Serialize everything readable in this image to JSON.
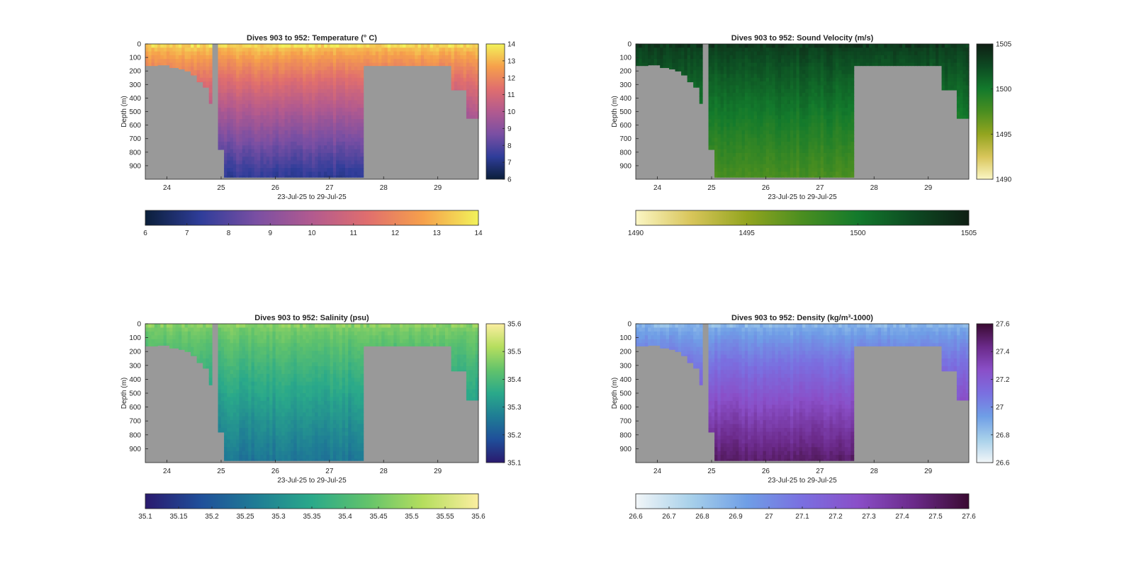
{
  "chart_data": [
    {
      "type": "heatmap",
      "title": "Dives 903 to 952: Temperature (° C)",
      "xlabel": "23-Jul-25 to 29-Jul-25",
      "ylabel": "Depth (m)",
      "x_range": [
        23.6,
        29.75
      ],
      "y_range": [
        0,
        1000
      ],
      "x_ticks": [
        "24",
        "25",
        "26",
        "27",
        "28",
        "29"
      ],
      "y_ticks": [
        "0",
        "100",
        "200",
        "300",
        "400",
        "500",
        "600",
        "700",
        "800",
        "900"
      ],
      "clim": [
        6,
        14
      ],
      "colorbar_right_ticks": [
        "6",
        "7",
        "8",
        "9",
        "10",
        "11",
        "12",
        "13",
        "14"
      ],
      "colorbar_bottom_ticks": [
        "6",
        "7",
        "8",
        "9",
        "10",
        "11",
        "12",
        "13",
        "14"
      ],
      "surface_value": 13.6,
      "bottom_value": 7.2,
      "colormap": [
        "#0b1f3a",
        "#2f3d9a",
        "#7a4fa3",
        "#b25a8f",
        "#e06e6e",
        "#f6a04b",
        "#f2f25a"
      ]
    },
    {
      "type": "heatmap",
      "title": "Dives 903 to 952: Sound Velocity (m/s)",
      "xlabel": "23-Jul-25 to 29-Jul-25",
      "ylabel": "Depth (m)",
      "x_range": [
        23.6,
        29.75
      ],
      "y_range": [
        0,
        1000
      ],
      "x_ticks": [
        "24",
        "25",
        "26",
        "27",
        "28",
        "29"
      ],
      "y_ticks": [
        "0",
        "100",
        "200",
        "300",
        "400",
        "500",
        "600",
        "700",
        "800",
        "900"
      ],
      "clim": [
        1490,
        1505
      ],
      "colorbar_right_ticks": [
        "1490",
        "1495",
        "1500",
        "1505"
      ],
      "colorbar_bottom_ticks": [
        "1490",
        "1495",
        "1500",
        "1505"
      ],
      "surface_value": 1503.5,
      "bottom_value": 1497.5,
      "colormap": [
        "#fbf6c4",
        "#d8c55a",
        "#93a51f",
        "#4a8e20",
        "#137a2c",
        "#0d4a22",
        "#0f1f14"
      ]
    },
    {
      "type": "heatmap",
      "title": "Dives 903 to 952: Salinity (psu)",
      "xlabel": "23-Jul-25 to 29-Jul-25",
      "ylabel": "Depth (m)",
      "x_range": [
        23.6,
        29.75
      ],
      "y_range": [
        0,
        1000
      ],
      "x_ticks": [
        "24",
        "25",
        "26",
        "27",
        "28",
        "29"
      ],
      "y_ticks": [
        "0",
        "100",
        "200",
        "300",
        "400",
        "500",
        "600",
        "700",
        "800",
        "900"
      ],
      "clim": [
        35.1,
        35.6
      ],
      "colorbar_right_ticks": [
        "35.1",
        "35.2",
        "35.3",
        "35.4",
        "35.5",
        "35.6"
      ],
      "colorbar_bottom_ticks": [
        "35.1",
        "35.15",
        "35.2",
        "35.25",
        "35.3",
        "35.35",
        "35.4",
        "35.45",
        "35.5",
        "35.55",
        "35.6"
      ],
      "surface_value": 35.47,
      "bottom_value": 35.25,
      "colormap": [
        "#2a1a6e",
        "#1f4f9a",
        "#1f7d95",
        "#2aa98a",
        "#62c36b",
        "#b5de5e",
        "#fbeea0"
      ]
    },
    {
      "type": "heatmap",
      "title": "Dives 903 to 952: Density (kg/m³-1000)",
      "xlabel": "23-Jul-25 to 29-Jul-25",
      "ylabel": "Depth (m)",
      "x_range": [
        23.6,
        29.75
      ],
      "y_range": [
        0,
        1000
      ],
      "x_ticks": [
        "24",
        "25",
        "26",
        "27",
        "28",
        "29"
      ],
      "y_ticks": [
        "0",
        "100",
        "200",
        "300",
        "400",
        "500",
        "600",
        "700",
        "800",
        "900"
      ],
      "clim": [
        26.6,
        27.6
      ],
      "colorbar_right_ticks": [
        "26.6",
        "26.8",
        "27",
        "27.2",
        "27.4",
        "27.6"
      ],
      "colorbar_bottom_ticks": [
        "26.6",
        "26.7",
        "26.8",
        "26.9",
        "27",
        "27.1",
        "27.2",
        "27.3",
        "27.4",
        "27.5",
        "27.6"
      ],
      "surface_value": 26.85,
      "bottom_value": 27.5,
      "colormap": [
        "#f2f6f8",
        "#a7d0ea",
        "#6f9ee6",
        "#7a6fe0",
        "#8a4fc8",
        "#6b2a8a",
        "#3a0b32"
      ]
    }
  ],
  "dive_profiles": {
    "unit_x": "day of July 2025",
    "unit_y": "max depth (m)",
    "profiles": [
      [
        23.6,
        160
      ],
      [
        23.85,
        155
      ],
      [
        24.05,
        175
      ],
      [
        24.2,
        185
      ],
      [
        24.35,
        200
      ],
      [
        24.45,
        230
      ],
      [
        24.55,
        280
      ],
      [
        24.65,
        320
      ],
      [
        24.75,
        440
      ],
      [
        24.82,
        0
      ],
      [
        24.92,
        780
      ],
      [
        25.05,
        985
      ],
      [
        27.62,
        160
      ],
      [
        29.25,
        340
      ],
      [
        29.5,
        550
      ],
      [
        29.75,
        550
      ]
    ]
  }
}
